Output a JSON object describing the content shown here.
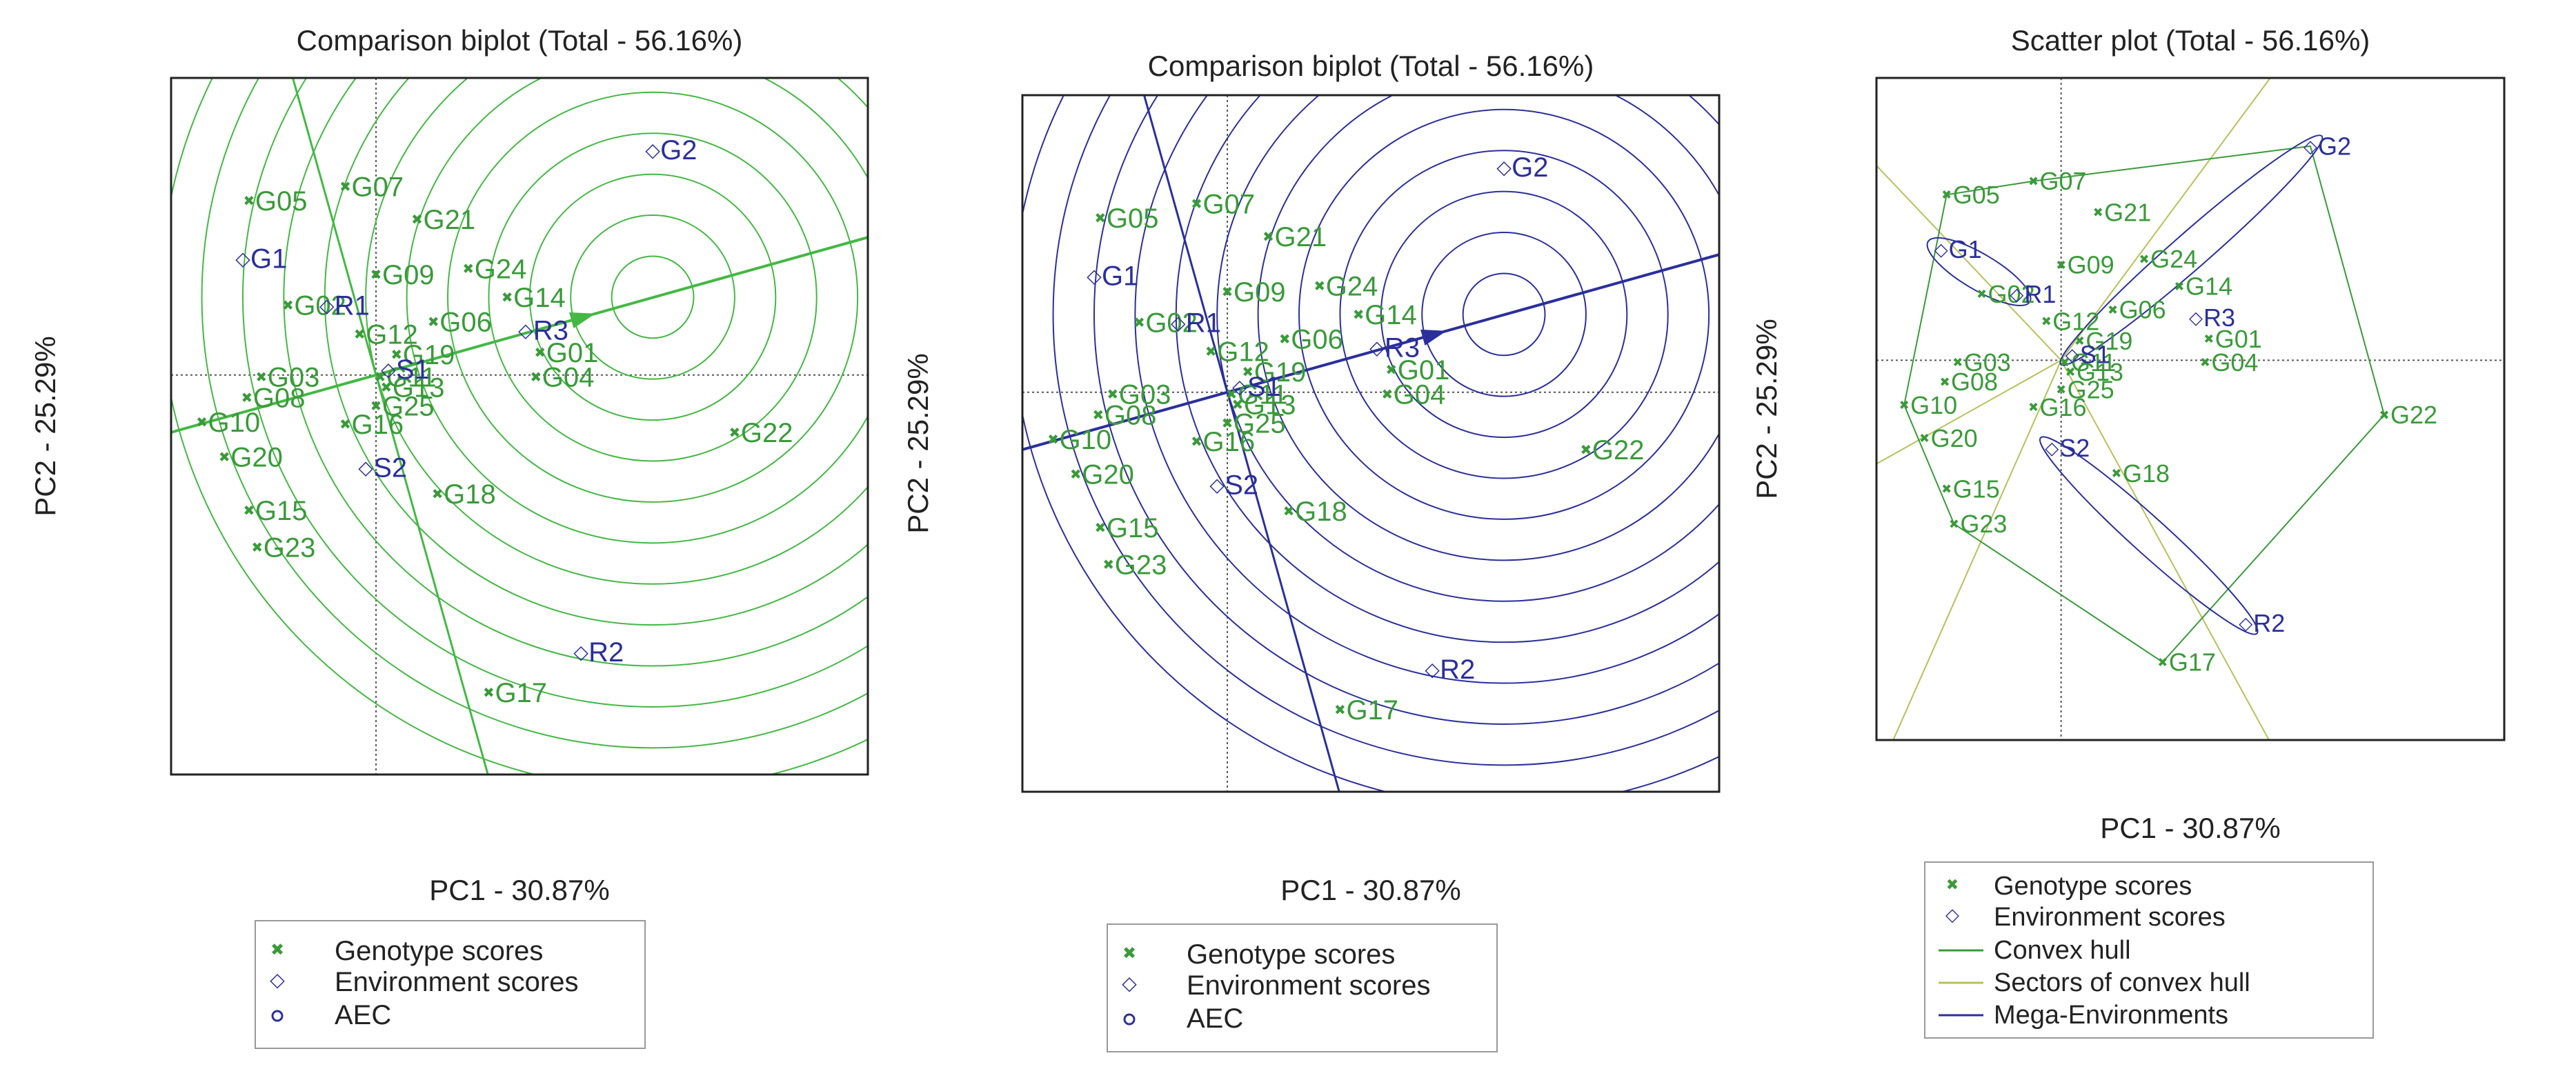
{
  "colors": {
    "genotype": "#3a9a3a",
    "environment": "#2b2f9b",
    "panel1_lines": "#44b844",
    "panel2_lines": "#2b2f9b",
    "convex_hull": "#3a9a3a",
    "sectors": "#b5c25a",
    "mega_env": "#2b2f9b",
    "frame": "#222222",
    "guide": "#555555"
  },
  "chart_data": [
    {
      "type": "scatter",
      "title": "Comparison biplot (Total - 56.16%)",
      "xlabel": "PC1 - 30.87%",
      "ylabel": "PC2 - 25.29%",
      "xlim": [
        -1.0,
        2.4
      ],
      "ylim": [
        -1.95,
        1.45
      ],
      "ideal_point": [
        1.35,
        0.38
      ],
      "circle_radii": [
        0.2,
        0.4,
        0.6,
        0.8,
        1.0,
        1.2,
        1.4,
        1.6,
        1.8,
        2.0,
        2.2,
        2.4
      ],
      "aec_slope": 0.28,
      "legend": [
        "Genotype scores",
        "Environment scores",
        "AEC"
      ],
      "genotypes": [
        {
          "name": "G05",
          "x": -0.62,
          "y": 0.85
        },
        {
          "name": "G07",
          "x": -0.15,
          "y": 0.92
        },
        {
          "name": "G21",
          "x": 0.2,
          "y": 0.76
        },
        {
          "name": "G24",
          "x": 0.45,
          "y": 0.52
        },
        {
          "name": "G09",
          "x": 0.0,
          "y": 0.49
        },
        {
          "name": "G14",
          "x": 0.64,
          "y": 0.38
        },
        {
          "name": "G02",
          "x": -0.43,
          "y": 0.34
        },
        {
          "name": "G06",
          "x": 0.28,
          "y": 0.26
        },
        {
          "name": "G12",
          "x": -0.08,
          "y": 0.2
        },
        {
          "name": "G19",
          "x": 0.1,
          "y": 0.1
        },
        {
          "name": "G01",
          "x": 0.8,
          "y": 0.11
        },
        {
          "name": "G04",
          "x": 0.78,
          "y": -0.01
        },
        {
          "name": "G03",
          "x": -0.56,
          "y": -0.01
        },
        {
          "name": "G08",
          "x": -0.63,
          "y": -0.11
        },
        {
          "name": "G11",
          "x": 0.02,
          "y": -0.01
        },
        {
          "name": "G13",
          "x": 0.05,
          "y": -0.06
        },
        {
          "name": "G25",
          "x": 0.0,
          "y": -0.15
        },
        {
          "name": "G16",
          "x": -0.15,
          "y": -0.24
        },
        {
          "name": "G10",
          "x": -0.85,
          "y": -0.23
        },
        {
          "name": "G20",
          "x": -0.74,
          "y": -0.4
        },
        {
          "name": "G15",
          "x": -0.62,
          "y": -0.66
        },
        {
          "name": "G23",
          "x": -0.58,
          "y": -0.84
        },
        {
          "name": "G18",
          "x": 0.3,
          "y": -0.58
        },
        {
          "name": "G22",
          "x": 1.75,
          "y": -0.28
        },
        {
          "name": "G17",
          "x": 0.55,
          "y": -1.55
        }
      ],
      "environments": [
        {
          "name": "G2",
          "x": 1.35,
          "y": 1.1
        },
        {
          "name": "G1",
          "x": -0.65,
          "y": 0.57
        },
        {
          "name": "R1",
          "x": -0.24,
          "y": 0.34
        },
        {
          "name": "R3",
          "x": 0.73,
          "y": 0.22
        },
        {
          "name": "S1",
          "x": 0.06,
          "y": 0.03
        },
        {
          "name": "S2",
          "x": -0.05,
          "y": -0.45
        },
        {
          "name": "R2",
          "x": 1.0,
          "y": -1.35
        }
      ]
    },
    {
      "type": "scatter",
      "title": "Comparison biplot (Total - 56.16%)",
      "xlabel": "PC1 - 30.87%",
      "ylabel": "PC2 - 25.29%",
      "xlim": [
        -1.0,
        2.4
      ],
      "ylim": [
        -1.95,
        1.45
      ],
      "ideal_point": [
        1.35,
        0.38
      ],
      "circle_radii": [
        0.2,
        0.4,
        0.6,
        0.8,
        1.0,
        1.2,
        1.4,
        1.6,
        1.8,
        2.0,
        2.2,
        2.4
      ],
      "aec_slope": 0.28,
      "legend": [
        "Genotype scores",
        "Environment scores",
        "AEC"
      ],
      "genotypes": [
        {
          "name": "G05",
          "x": -0.62,
          "y": 0.85
        },
        {
          "name": "G07",
          "x": -0.15,
          "y": 0.92
        },
        {
          "name": "G21",
          "x": 0.2,
          "y": 0.76
        },
        {
          "name": "G24",
          "x": 0.45,
          "y": 0.52
        },
        {
          "name": "G09",
          "x": 0.0,
          "y": 0.49
        },
        {
          "name": "G14",
          "x": 0.64,
          "y": 0.38
        },
        {
          "name": "G02",
          "x": -0.43,
          "y": 0.34
        },
        {
          "name": "G06",
          "x": 0.28,
          "y": 0.26
        },
        {
          "name": "G12",
          "x": -0.08,
          "y": 0.2
        },
        {
          "name": "G19",
          "x": 0.1,
          "y": 0.1
        },
        {
          "name": "G01",
          "x": 0.8,
          "y": 0.11
        },
        {
          "name": "G04",
          "x": 0.78,
          "y": -0.01
        },
        {
          "name": "G03",
          "x": -0.56,
          "y": -0.01
        },
        {
          "name": "G08",
          "x": -0.63,
          "y": -0.11
        },
        {
          "name": "G11",
          "x": 0.02,
          "y": -0.01
        },
        {
          "name": "G13",
          "x": 0.05,
          "y": -0.06
        },
        {
          "name": "G25",
          "x": 0.0,
          "y": -0.15
        },
        {
          "name": "G16",
          "x": -0.15,
          "y": -0.24
        },
        {
          "name": "G10",
          "x": -0.85,
          "y": -0.23
        },
        {
          "name": "G20",
          "x": -0.74,
          "y": -0.4
        },
        {
          "name": "G15",
          "x": -0.62,
          "y": -0.66
        },
        {
          "name": "G23",
          "x": -0.58,
          "y": -0.84
        },
        {
          "name": "G18",
          "x": 0.3,
          "y": -0.58
        },
        {
          "name": "G22",
          "x": 1.75,
          "y": -0.28
        },
        {
          "name": "G17",
          "x": 0.55,
          "y": -1.55
        }
      ],
      "environments": [
        {
          "name": "G2",
          "x": 1.35,
          "y": 1.1
        },
        {
          "name": "G1",
          "x": -0.65,
          "y": 0.57
        },
        {
          "name": "R1",
          "x": -0.24,
          "y": 0.34
        },
        {
          "name": "R3",
          "x": 0.73,
          "y": 0.22
        },
        {
          "name": "S1",
          "x": 0.06,
          "y": 0.03
        },
        {
          "name": "S2",
          "x": -0.05,
          "y": -0.45
        },
        {
          "name": "R2",
          "x": 1.0,
          "y": -1.35
        }
      ]
    },
    {
      "type": "scatter",
      "title": "Scatter plot (Total - 56.16%)",
      "xlabel": "PC1 - 30.87%",
      "ylabel": "PC2 - 25.29%",
      "xlim": [
        -1.0,
        2.4
      ],
      "ylim": [
        -1.95,
        1.45
      ],
      "legend": [
        "Genotype scores",
        "Environment scores",
        "Convex hull",
        "Sectors of convex hull",
        "Mega-Environments"
      ],
      "convex_hull": [
        "G07",
        "G2",
        "G22",
        "G17",
        "G23",
        "G10",
        "G05"
      ],
      "sector_angles_deg": [
        52,
        135,
        208,
        245,
        300
      ],
      "mega_environments": [
        {
          "members": [
            "G2",
            "R3",
            "S1"
          ]
        },
        {
          "members": [
            "G1",
            "R1"
          ]
        },
        {
          "members": [
            "S2",
            "R2"
          ]
        }
      ],
      "genotypes": [
        {
          "name": "G05",
          "x": -0.62,
          "y": 0.85
        },
        {
          "name": "G07",
          "x": -0.15,
          "y": 0.92
        },
        {
          "name": "G21",
          "x": 0.2,
          "y": 0.76
        },
        {
          "name": "G24",
          "x": 0.45,
          "y": 0.52
        },
        {
          "name": "G09",
          "x": 0.0,
          "y": 0.49
        },
        {
          "name": "G14",
          "x": 0.64,
          "y": 0.38
        },
        {
          "name": "G02",
          "x": -0.43,
          "y": 0.34
        },
        {
          "name": "G06",
          "x": 0.28,
          "y": 0.26
        },
        {
          "name": "G12",
          "x": -0.08,
          "y": 0.2
        },
        {
          "name": "G19",
          "x": 0.1,
          "y": 0.1
        },
        {
          "name": "G01",
          "x": 0.8,
          "y": 0.11
        },
        {
          "name": "G04",
          "x": 0.78,
          "y": -0.01
        },
        {
          "name": "G03",
          "x": -0.56,
          "y": -0.01
        },
        {
          "name": "G08",
          "x": -0.63,
          "y": -0.11
        },
        {
          "name": "G11",
          "x": 0.02,
          "y": -0.01
        },
        {
          "name": "G13",
          "x": 0.05,
          "y": -0.06
        },
        {
          "name": "G25",
          "x": 0.0,
          "y": -0.15
        },
        {
          "name": "G16",
          "x": -0.15,
          "y": -0.24
        },
        {
          "name": "G10",
          "x": -0.85,
          "y": -0.23
        },
        {
          "name": "G20",
          "x": -0.74,
          "y": -0.4
        },
        {
          "name": "G15",
          "x": -0.62,
          "y": -0.66
        },
        {
          "name": "G23",
          "x": -0.58,
          "y": -0.84
        },
        {
          "name": "G18",
          "x": 0.3,
          "y": -0.58
        },
        {
          "name": "G22",
          "x": 1.75,
          "y": -0.28
        },
        {
          "name": "G17",
          "x": 0.55,
          "y": -1.55
        }
      ],
      "environments": [
        {
          "name": "G2",
          "x": 1.35,
          "y": 1.1
        },
        {
          "name": "G1",
          "x": -0.65,
          "y": 0.57
        },
        {
          "name": "R1",
          "x": -0.24,
          "y": 0.34
        },
        {
          "name": "R3",
          "x": 0.73,
          "y": 0.22
        },
        {
          "name": "S1",
          "x": 0.06,
          "y": 0.03
        },
        {
          "name": "S2",
          "x": -0.05,
          "y": -0.45
        },
        {
          "name": "R2",
          "x": 1.0,
          "y": -1.35
        }
      ]
    }
  ]
}
